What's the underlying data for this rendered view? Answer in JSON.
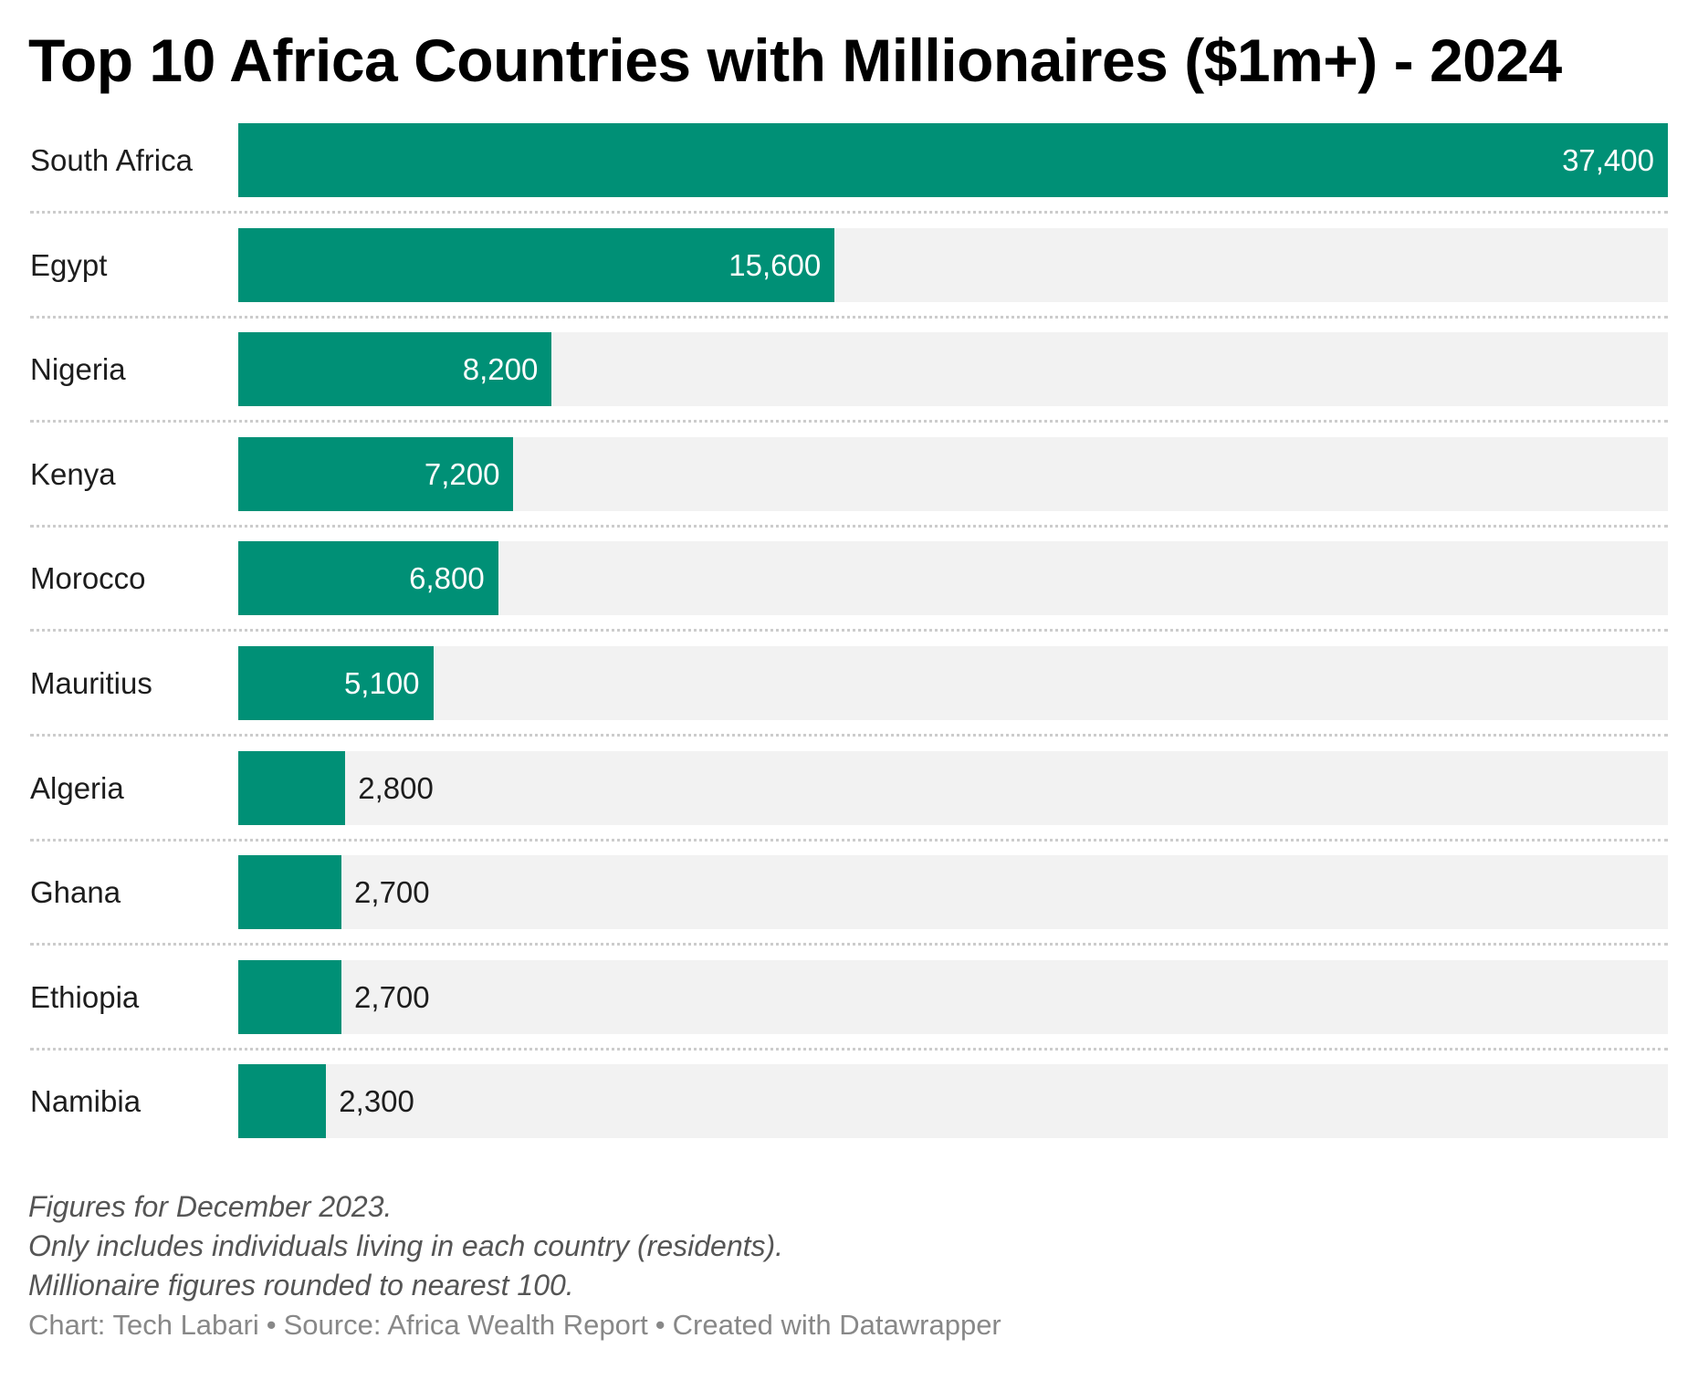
{
  "colors": {
    "bar": "#009076",
    "track": "#f2f2f2",
    "divider": "#cccccc",
    "label_inside": "#ffffff",
    "label_outside": "#1d1d1d"
  },
  "chart_data": {
    "type": "bar",
    "orientation": "horizontal",
    "title": "Top 10 Africa Countries with Millionaires ($1m+) - 2024",
    "xlabel": "",
    "ylabel": "",
    "xlim": [
      0,
      37400
    ],
    "grid": false,
    "legend": "none",
    "categories": [
      "South Africa",
      "Egypt",
      "Nigeria",
      "Kenya",
      "Morocco",
      "Mauritius",
      "Algeria",
      "Ghana",
      "Ethiopia",
      "Namibia"
    ],
    "values": [
      37400,
      15600,
      8200,
      7200,
      6800,
      5100,
      2800,
      2700,
      2700,
      2300
    ],
    "value_labels": [
      "37,400",
      "15,600",
      "8,200",
      "7,200",
      "6,800",
      "5,100",
      "2,800",
      "2,700",
      "2,700",
      "2,300"
    ]
  },
  "notes": [
    "Figures for December 2023.",
    "Only includes individuals living in each country (residents).",
    "Millionaire figures rounded to nearest 100."
  ],
  "credit": {
    "chart": "Chart: Tech Labari",
    "source": "Source: Africa Wealth Report",
    "tool": "Created with Datawrapper",
    "separator": "•"
  }
}
